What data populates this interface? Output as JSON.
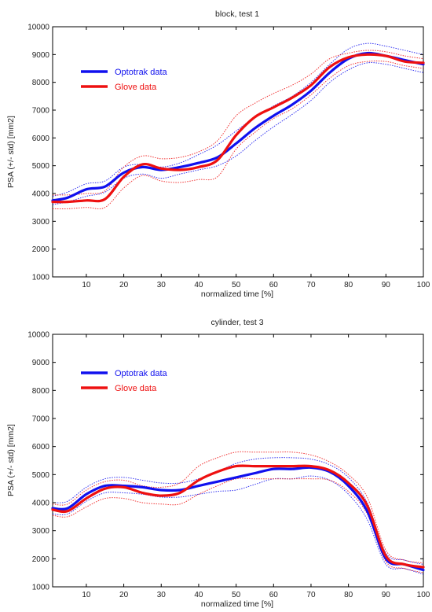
{
  "colors": {
    "optotrak": "#1010ee",
    "glove": "#ee1010",
    "axis": "#000000",
    "background": "#ffffff"
  },
  "chart_data": [
    {
      "type": "line",
      "title": "block, test 1",
      "xlabel": "normalized time [%]",
      "ylabel": "PSA (+/- std) [mm2]",
      "xlim": [
        1,
        100
      ],
      "ylim": [
        1000,
        10000
      ],
      "xticks": [
        10,
        20,
        30,
        40,
        50,
        60,
        70,
        80,
        90,
        100
      ],
      "yticks": [
        1000,
        2000,
        3000,
        4000,
        5000,
        6000,
        7000,
        8000,
        9000,
        10000
      ],
      "grid": false,
      "legend_position": "upper-left",
      "x": [
        1,
        5,
        10,
        15,
        20,
        25,
        30,
        35,
        40,
        45,
        50,
        55,
        60,
        65,
        70,
        75,
        80,
        85,
        90,
        95,
        100
      ],
      "series": [
        {
          "name": "Optotrak data",
          "color": "#1010ee",
          "mean": [
            3750,
            3850,
            4150,
            4250,
            4750,
            4950,
            4850,
            4950,
            5100,
            5300,
            5800,
            6350,
            6800,
            7200,
            7700,
            8350,
            8850,
            9050,
            8950,
            8800,
            8650
          ],
          "upper": [
            3900,
            4050,
            4350,
            4450,
            4950,
            5050,
            4950,
            5100,
            5400,
            5750,
            6250,
            6750,
            7150,
            7500,
            8000,
            8650,
            9200,
            9400,
            9300,
            9150,
            9000
          ],
          "lower": [
            3600,
            3700,
            3900,
            4050,
            4550,
            4700,
            4550,
            4700,
            4850,
            5000,
            5350,
            5900,
            6400,
            6850,
            7350,
            8000,
            8450,
            8700,
            8650,
            8500,
            8350
          ]
        },
        {
          "name": "Glove data",
          "color": "#ee1010",
          "mean": [
            3700,
            3700,
            3750,
            3800,
            4600,
            5050,
            4900,
            4850,
            4950,
            5200,
            6100,
            6750,
            7100,
            7450,
            7900,
            8550,
            8900,
            9000,
            8950,
            8750,
            8700
          ],
          "upper": [
            3950,
            3950,
            4000,
            4100,
            4950,
            5350,
            5250,
            5300,
            5500,
            5900,
            6800,
            7250,
            7600,
            7900,
            8300,
            8850,
            9050,
            9150,
            9100,
            8950,
            8850
          ],
          "lower": [
            3450,
            3450,
            3500,
            3500,
            4200,
            4650,
            4450,
            4400,
            4500,
            4600,
            5600,
            6200,
            6700,
            7050,
            7550,
            8150,
            8600,
            8750,
            8750,
            8600,
            8500
          ]
        }
      ]
    },
    {
      "type": "line",
      "title": "cylinder, test 3",
      "xlabel": "normalized time [%]",
      "ylabel": "PSA (+/- std) [mm2]",
      "xlim": [
        1,
        100
      ],
      "ylim": [
        1000,
        10000
      ],
      "xticks": [
        10,
        20,
        30,
        40,
        50,
        60,
        70,
        80,
        90,
        100
      ],
      "yticks": [
        1000,
        2000,
        3000,
        4000,
        5000,
        6000,
        7000,
        8000,
        9000,
        10000
      ],
      "grid": false,
      "legend_position": "upper-left",
      "x": [
        1,
        5,
        10,
        15,
        20,
        25,
        30,
        35,
        40,
        45,
        50,
        55,
        60,
        65,
        70,
        75,
        80,
        85,
        90,
        95,
        100
      ],
      "series": [
        {
          "name": "Optotrak data",
          "color": "#1010ee",
          "mean": [
            3800,
            3800,
            4300,
            4600,
            4600,
            4550,
            4450,
            4450,
            4600,
            4750,
            4900,
            5050,
            5200,
            5200,
            5250,
            5100,
            4600,
            3700,
            2000,
            1800,
            1600
          ],
          "upper": [
            4000,
            4050,
            4550,
            4850,
            4900,
            4800,
            4700,
            4700,
            4850,
            5100,
            5400,
            5550,
            5600,
            5600,
            5550,
            5350,
            4900,
            4000,
            2200,
            1950,
            1800
          ],
          "lower": [
            3600,
            3600,
            4050,
            4350,
            4350,
            4300,
            4200,
            4200,
            4300,
            4400,
            4450,
            4650,
            4850,
            4850,
            4950,
            4800,
            4300,
            3400,
            1800,
            1650,
            1450
          ]
        },
        {
          "name": "Glove data",
          "color": "#ee1010",
          "mean": [
            3750,
            3700,
            4150,
            4500,
            4550,
            4350,
            4250,
            4350,
            4800,
            5100,
            5300,
            5300,
            5300,
            5300,
            5300,
            5150,
            4700,
            3900,
            2100,
            1800,
            1700
          ],
          "upper": [
            3950,
            3950,
            4450,
            4750,
            4800,
            4600,
            4550,
            4700,
            5300,
            5600,
            5800,
            5800,
            5800,
            5800,
            5700,
            5450,
            5000,
            4200,
            2300,
            1950,
            1850
          ],
          "lower": [
            3550,
            3500,
            3850,
            4150,
            4150,
            4000,
            3950,
            3950,
            4300,
            4600,
            4850,
            4850,
            4850,
            4850,
            4850,
            4800,
            4400,
            3600,
            1900,
            1650,
            1500
          ]
        }
      ]
    }
  ]
}
